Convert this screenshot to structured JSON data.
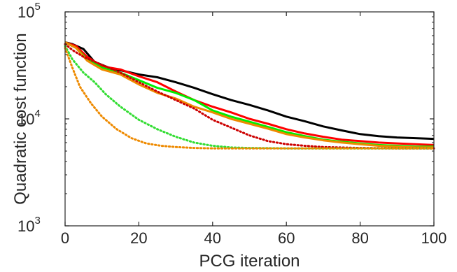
{
  "chart_data": {
    "type": "line",
    "title": "",
    "xlabel": "PCG iteration",
    "ylabel": "Quadratic cost function",
    "xlim": [
      0,
      100
    ],
    "ylim": [
      1000,
      100000
    ],
    "yscale": "log",
    "grid": false,
    "box": true,
    "legend": "none",
    "xticks": [
      {
        "value": 0,
        "label": "0"
      },
      {
        "value": 20,
        "label": "20"
      },
      {
        "value": 40,
        "label": "40"
      },
      {
        "value": 60,
        "label": "60"
      },
      {
        "value": 80,
        "label": "80"
      },
      {
        "value": 100,
        "label": "100"
      }
    ],
    "yticks": [
      {
        "value": 1000,
        "base": "10",
        "exp": "3"
      },
      {
        "value": 10000,
        "base": "10",
        "exp": "4"
      },
      {
        "value": 100000,
        "base": "10",
        "exp": "5"
      }
    ],
    "series": [
      {
        "color": "#000000",
        "style": "solid",
        "x": [
          0,
          2,
          5,
          8,
          12,
          16,
          20,
          25,
          30,
          35,
          40,
          45,
          50,
          55,
          60,
          65,
          70,
          75,
          80,
          85,
          90,
          95,
          100
        ],
        "y": [
          52000,
          50000,
          45000,
          34000,
          30000,
          28000,
          26000,
          24500,
          22000,
          19500,
          17000,
          15000,
          13500,
          12000,
          10500,
          9500,
          8500,
          7800,
          7200,
          6900,
          6700,
          6600,
          6500
        ]
      },
      {
        "color": "#ff0000",
        "style": "solid",
        "x": [
          0,
          3,
          6,
          10,
          15,
          20,
          25,
          30,
          35,
          40,
          45,
          50,
          55,
          60,
          65,
          70,
          75,
          80,
          85,
          90,
          95,
          100
        ],
        "y": [
          52000,
          48000,
          38000,
          31000,
          29000,
          25000,
          22000,
          18000,
          15000,
          13000,
          11500,
          10000,
          9000,
          8000,
          7300,
          6800,
          6400,
          6200,
          6000,
          5900,
          5800,
          5700
        ]
      },
      {
        "color": "#00ee00",
        "style": "solid",
        "x": [
          0,
          3,
          6,
          10,
          15,
          20,
          25,
          30,
          35,
          40,
          45,
          50,
          55,
          60,
          65,
          70,
          75,
          80,
          85,
          90,
          95,
          100
        ],
        "y": [
          52000,
          46000,
          36000,
          30000,
          27000,
          23000,
          19500,
          17500,
          15000,
          12000,
          10500,
          9400,
          8400,
          7500,
          6900,
          6400,
          6100,
          5900,
          5700,
          5600,
          5500,
          5500
        ]
      },
      {
        "color": "#ee8a00",
        "style": "solid",
        "x": [
          0,
          3,
          6,
          10,
          15,
          20,
          25,
          30,
          35,
          40,
          45,
          50,
          55,
          60,
          65,
          70,
          75,
          80,
          85,
          90,
          95,
          100
        ],
        "y": [
          52000,
          46000,
          35000,
          29000,
          26000,
          21000,
          17500,
          15500,
          13000,
          11500,
          10000,
          9000,
          8100,
          7200,
          6700,
          6300,
          6000,
          5800,
          5600,
          5500,
          5400,
          5400
        ]
      },
      {
        "color": "#cc0000",
        "style": "dotted",
        "x": [
          0,
          2,
          5,
          10,
          15,
          20,
          25,
          30,
          35,
          40,
          45,
          50,
          55,
          60,
          65,
          70,
          80,
          90,
          100
        ],
        "y": [
          50000,
          44000,
          38000,
          32000,
          27000,
          22000,
          18000,
          15000,
          12500,
          9800,
          8300,
          7000,
          6200,
          5800,
          5600,
          5450,
          5350,
          5300,
          5300
        ]
      },
      {
        "color": "#33dd33",
        "style": "dotted",
        "x": [
          0,
          2,
          5,
          8,
          11,
          15,
          20,
          25,
          30,
          35,
          40,
          45,
          50,
          60,
          70,
          80,
          90,
          100
        ],
        "y": [
          48000,
          36000,
          27000,
          22000,
          17000,
          13000,
          9800,
          8000,
          6800,
          6000,
          5600,
          5400,
          5350,
          5300,
          5300,
          5300,
          5300,
          5300
        ]
      },
      {
        "color": "#ee8a00",
        "style": "dotted",
        "x": [
          0,
          2,
          4,
          7,
          10,
          14,
          18,
          22,
          26,
          30,
          35,
          40,
          50,
          60,
          70,
          80,
          90,
          100
        ],
        "y": [
          46000,
          30000,
          20000,
          14000,
          10500,
          8000,
          6600,
          5900,
          5600,
          5450,
          5350,
          5300,
          5300,
          5300,
          5300,
          5300,
          5300,
          5300
        ]
      }
    ]
  }
}
